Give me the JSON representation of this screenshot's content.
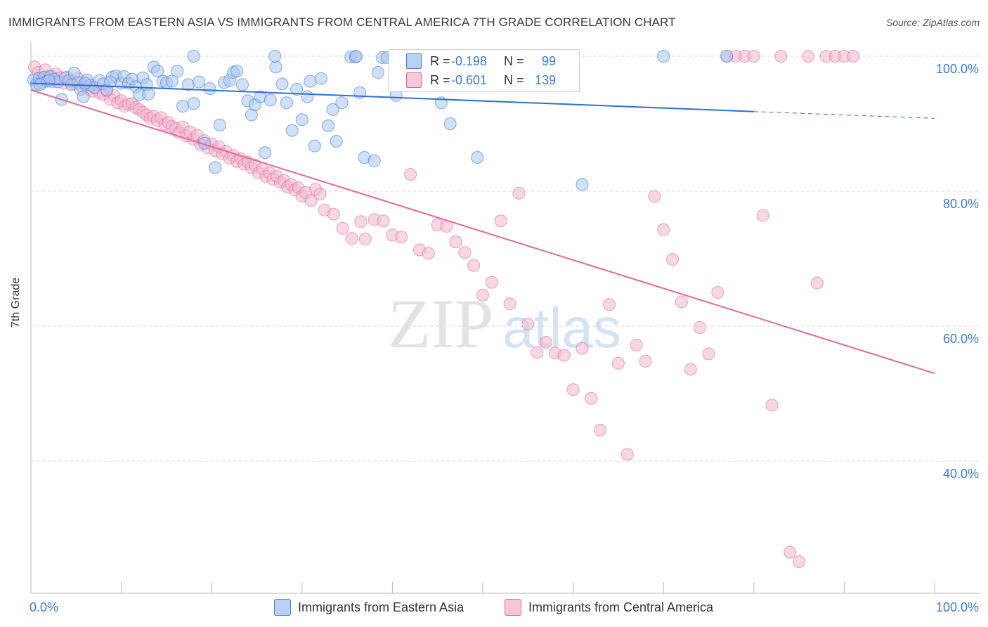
{
  "title": "IMMIGRANTS FROM EASTERN ASIA VS IMMIGRANTS FROM CENTRAL AMERICA 7TH GRADE CORRELATION CHART",
  "source": "Source: ZipAtlas.com",
  "watermark": {
    "zip": "ZIP",
    "atlas": "atlas"
  },
  "colors": {
    "blue": "#4a7fd6",
    "blue_fill": "#a9c6ee",
    "pink": "#e0699a",
    "pink_fill": "#f3b6ce",
    "axis_label": "#3a7bd5",
    "grid": "#d9d9d9"
  },
  "stats": [
    {
      "r_label": "R =",
      "r_value": "-0.198",
      "n_label": "N =",
      "n_value": "99"
    },
    {
      "r_label": "R =",
      "r_value": "-0.601",
      "n_label": "N =",
      "n_value": "139"
    }
  ],
  "chart_data": {
    "type": "scatter",
    "title": "IMMIGRANTS FROM EASTERN ASIA VS IMMIGRANTS FROM CENTRAL AMERICA 7TH GRADE CORRELATION CHART",
    "xlabel": "",
    "ylabel": "7th Grade",
    "xlim": [
      0,
      100
    ],
    "ylim": [
      18,
      102
    ],
    "x_tick_labels": [
      "0.0%",
      "100.0%"
    ],
    "y_ticks": [
      {
        "value": 100,
        "label": "100.0%"
      },
      {
        "value": 80,
        "label": "80.0%"
      },
      {
        "value": 60,
        "label": "60.0%"
      },
      {
        "value": 40,
        "label": "40.0%"
      }
    ],
    "grid": true,
    "legend_position": "bottom",
    "series": [
      {
        "name": "Immigrants from Eastern Asia",
        "color": "#4a7fd6",
        "r": -0.198,
        "n": 99,
        "trend": {
          "x0": 0,
          "y0": 96.0,
          "x1": 80,
          "y1": 91.8,
          "dash_to_x": 100,
          "dash_to_y": 90.8
        },
        "points": [
          [
            0.3,
            96.5
          ],
          [
            0.6,
            95.8
          ],
          [
            0.9,
            96.7
          ],
          [
            1.2,
            96.1
          ],
          [
            1.5,
            96.9
          ],
          [
            1.8,
            96.3
          ],
          [
            2.2,
            97.0
          ],
          [
            2.6,
            96.6
          ],
          [
            3.0,
            96.2
          ],
          [
            3.4,
            93.6
          ],
          [
            3.8,
            96.8
          ],
          [
            4.2,
            96.4
          ],
          [
            4.5,
            95.8
          ],
          [
            4.8,
            97.5
          ],
          [
            5.2,
            96.1
          ],
          [
            5.5,
            95.1
          ],
          [
            5.8,
            94.0
          ],
          [
            6.2,
            96.5
          ],
          [
            6.6,
            95.7
          ],
          [
            7.0,
            95.4
          ],
          [
            7.6,
            96.4
          ],
          [
            8.0,
            95.9
          ],
          [
            8.4,
            95.0
          ],
          [
            9.0,
            96.9
          ],
          [
            9.4,
            97.1
          ],
          [
            10.0,
            96.0
          ],
          [
            10.3,
            97.0
          ],
          [
            10.8,
            96.0
          ],
          [
            11.2,
            96.6
          ],
          [
            11.6,
            95.5
          ],
          [
            12.0,
            94.3
          ],
          [
            12.4,
            96.8
          ],
          [
            13.0,
            94.4
          ],
          [
            13.6,
            98.4
          ],
          [
            14.0,
            97.8
          ],
          [
            14.6,
            96.3
          ],
          [
            15.0,
            96.1
          ],
          [
            15.6,
            96.3
          ],
          [
            16.2,
            97.8
          ],
          [
            16.8,
            92.6
          ],
          [
            17.4,
            95.8
          ],
          [
            18.0,
            93.0
          ],
          [
            18.6,
            96.2
          ],
          [
            19.2,
            87.1
          ],
          [
            19.8,
            95.2
          ],
          [
            20.4,
            83.5
          ],
          [
            20.9,
            89.8
          ],
          [
            21.4,
            96.1
          ],
          [
            22.0,
            96.4
          ],
          [
            22.4,
            97.6
          ],
          [
            22.8,
            97.8
          ],
          [
            23.4,
            95.8
          ],
          [
            24.0,
            93.4
          ],
          [
            24.4,
            91.3
          ],
          [
            24.8,
            92.8
          ],
          [
            25.4,
            94.0
          ],
          [
            25.9,
            85.7
          ],
          [
            26.5,
            93.5
          ],
          [
            27.1,
            98.4
          ],
          [
            27.8,
            95.9
          ],
          [
            28.3,
            93.1
          ],
          [
            28.9,
            89.0
          ],
          [
            29.4,
            95.1
          ],
          [
            30.0,
            90.6
          ],
          [
            30.6,
            94.0
          ],
          [
            30.9,
            96.3
          ],
          [
            31.4,
            86.7
          ],
          [
            32.1,
            96.7
          ],
          [
            32.9,
            89.7
          ],
          [
            33.4,
            92.1
          ],
          [
            33.8,
            87.4
          ],
          [
            34.4,
            93.1
          ],
          [
            35.4,
            99.9
          ],
          [
            35.9,
            99.9
          ],
          [
            36.4,
            94.6
          ],
          [
            36.9,
            85.0
          ],
          [
            38.0,
            84.5
          ],
          [
            38.4,
            97.6
          ],
          [
            38.9,
            99.8
          ],
          [
            39.4,
            99.8
          ],
          [
            40.4,
            94.2
          ],
          [
            41.4,
            100.0
          ],
          [
            42.4,
            99.6
          ],
          [
            45.4,
            93.1
          ],
          [
            46.4,
            90.0
          ],
          [
            49.4,
            85.0
          ],
          [
            61.0,
            81.0
          ],
          [
            70.0,
            100.0
          ],
          [
            77.0,
            100.0
          ],
          [
            18.0,
            100.0
          ],
          [
            27.0,
            100.0
          ],
          [
            36.0,
            100.0
          ],
          [
            43.0,
            100.0
          ],
          [
            54.0,
            100.0
          ],
          [
            6.0,
            96.0
          ],
          [
            8.8,
            96.2
          ],
          [
            12.8,
            95.8
          ],
          [
            2.0,
            96.4
          ],
          [
            1.0,
            95.8
          ]
        ]
      },
      {
        "name": "Immigrants from Central America",
        "color": "#e0699a",
        "r": -0.601,
        "n": 139,
        "trend": {
          "x0": 0,
          "y0": 95.0,
          "x1": 100,
          "y1": 53.0
        },
        "points": [
          [
            0.4,
            98.4
          ],
          [
            0.8,
            97.6
          ],
          [
            1.2,
            96.8
          ],
          [
            1.6,
            98.0
          ],
          [
            2.0,
            97.0
          ],
          [
            2.4,
            96.2
          ],
          [
            2.8,
            97.4
          ],
          [
            3.2,
            96.8
          ],
          [
            3.6,
            96.0
          ],
          [
            4.0,
            96.9
          ],
          [
            4.4,
            96.3
          ],
          [
            4.8,
            95.9
          ],
          [
            5.2,
            96.7
          ],
          [
            5.6,
            95.6
          ],
          [
            6.0,
            95.8
          ],
          [
            6.4,
            95.1
          ],
          [
            6.8,
            94.8
          ],
          [
            7.2,
            95.3
          ],
          [
            7.6,
            94.6
          ],
          [
            8.0,
            94.3
          ],
          [
            8.4,
            94.9
          ],
          [
            8.8,
            93.6
          ],
          [
            9.2,
            94.2
          ],
          [
            9.6,
            93.1
          ],
          [
            10.0,
            93.4
          ],
          [
            10.4,
            92.6
          ],
          [
            10.8,
            92.9
          ],
          [
            11.2,
            93.0
          ],
          [
            11.6,
            92.4
          ],
          [
            12.0,
            92.1
          ],
          [
            12.4,
            91.7
          ],
          [
            12.8,
            91.3
          ],
          [
            13.2,
            90.8
          ],
          [
            13.6,
            91.1
          ],
          [
            14.0,
            90.5
          ],
          [
            14.4,
            90.9
          ],
          [
            14.8,
            89.9
          ],
          [
            15.2,
            90.2
          ],
          [
            15.6,
            89.6
          ],
          [
            16.0,
            89.3
          ],
          [
            16.4,
            88.7
          ],
          [
            16.8,
            89.5
          ],
          [
            17.2,
            88.2
          ],
          [
            17.6,
            88.8
          ],
          [
            18.0,
            87.7
          ],
          [
            18.4,
            88.3
          ],
          [
            18.8,
            86.9
          ],
          [
            19.2,
            87.5
          ],
          [
            19.6,
            86.4
          ],
          [
            20.0,
            87.0
          ],
          [
            20.4,
            86.0
          ],
          [
            20.8,
            86.6
          ],
          [
            21.2,
            85.5
          ],
          [
            21.6,
            85.9
          ],
          [
            22.0,
            84.9
          ],
          [
            22.4,
            85.3
          ],
          [
            22.8,
            84.4
          ],
          [
            23.2,
            84.8
          ],
          [
            23.6,
            84.0
          ],
          [
            24.0,
            84.3
          ],
          [
            24.4,
            83.5
          ],
          [
            24.8,
            83.9
          ],
          [
            25.2,
            82.7
          ],
          [
            25.6,
            83.3
          ],
          [
            26.0,
            82.2
          ],
          [
            26.4,
            82.7
          ],
          [
            26.8,
            81.8
          ],
          [
            27.2,
            82.2
          ],
          [
            27.6,
            81.3
          ],
          [
            28.0,
            81.6
          ],
          [
            28.4,
            80.6
          ],
          [
            28.8,
            81.0
          ],
          [
            29.2,
            80.2
          ],
          [
            29.6,
            80.5
          ],
          [
            30.0,
            79.3
          ],
          [
            30.4,
            79.8
          ],
          [
            31.0,
            78.6
          ],
          [
            31.5,
            80.3
          ],
          [
            32.0,
            79.6
          ],
          [
            32.5,
            77.2
          ],
          [
            33.5,
            76.6
          ],
          [
            34.5,
            74.5
          ],
          [
            35.5,
            73.0
          ],
          [
            36.5,
            75.5
          ],
          [
            37.0,
            72.9
          ],
          [
            38.0,
            75.8
          ],
          [
            39.0,
            75.6
          ],
          [
            40.0,
            73.5
          ],
          [
            41.0,
            73.2
          ],
          [
            42.0,
            82.5
          ],
          [
            43.0,
            71.3
          ],
          [
            44.0,
            70.8
          ],
          [
            45.0,
            75.0
          ],
          [
            46.0,
            74.8
          ],
          [
            47.0,
            72.5
          ],
          [
            48.0,
            70.9
          ],
          [
            49.0,
            69.0
          ],
          [
            50.0,
            64.6
          ],
          [
            51.0,
            66.5
          ],
          [
            52.0,
            75.6
          ],
          [
            53.0,
            63.3
          ],
          [
            54.0,
            79.7
          ],
          [
            55.0,
            60.3
          ],
          [
            56.0,
            56.1
          ],
          [
            57.0,
            57.6
          ],
          [
            58.0,
            56.0
          ],
          [
            59.0,
            55.7
          ],
          [
            60.0,
            50.6
          ],
          [
            61.0,
            56.7
          ],
          [
            62.0,
            49.3
          ],
          [
            63.0,
            44.6
          ],
          [
            64.0,
            63.2
          ],
          [
            65.0,
            54.5
          ],
          [
            66.0,
            41.0
          ],
          [
            67.0,
            57.2
          ],
          [
            68.0,
            54.8
          ],
          [
            69.0,
            79.2
          ],
          [
            70.0,
            74.3
          ],
          [
            71.0,
            69.9
          ],
          [
            72.0,
            63.6
          ],
          [
            73.0,
            53.6
          ],
          [
            74.0,
            59.8
          ],
          [
            75.0,
            55.9
          ],
          [
            76.0,
            65.0
          ],
          [
            77.0,
            100.0
          ],
          [
            78.0,
            100.0
          ],
          [
            79.0,
            100.0
          ],
          [
            80.0,
            100.0
          ],
          [
            81.0,
            76.4
          ],
          [
            82.0,
            48.3
          ],
          [
            83.0,
            100.0
          ],
          [
            84.0,
            26.5
          ],
          [
            85.0,
            25.1
          ],
          [
            86.0,
            100.0
          ],
          [
            87.0,
            66.4
          ],
          [
            88.0,
            100.0
          ],
          [
            89.0,
            100.0
          ],
          [
            90.0,
            100.0
          ],
          [
            91.0,
            100.0
          ]
        ]
      }
    ]
  },
  "legend": [
    {
      "label": "Immigrants from Eastern Asia"
    },
    {
      "label": "Immigrants from Central America"
    }
  ]
}
